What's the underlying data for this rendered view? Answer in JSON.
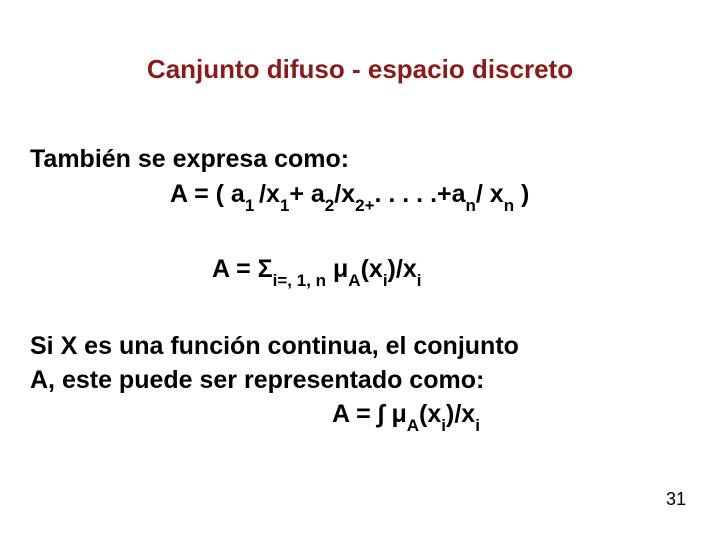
{
  "title": "Canjunto difuso - espacio discreto",
  "title_color": "#8b1a1a",
  "body_color": "#000000",
  "background_color": "#ffffff",
  "line_intro": "También se expresa como:",
  "formula1": {
    "A": "A",
    "eq": " = ( ",
    "a": "a",
    "s1": "1 ",
    "slash1": "/x",
    "s1b": "1",
    "plus1": "+ a",
    "s2": "2",
    "slash2": "/x",
    "s2b": "2+",
    "dots": ". . . . .+a",
    "sn": "n",
    "slashn": "/ x",
    "snb": "n",
    "close": " )"
  },
  "formula2": {
    "A": "A",
    "eq": " = ",
    "sigma": "Σ",
    "sub_sigma": "i=, 1, n",
    "sp": "  ",
    "mu": "μ",
    "subA": "A",
    "open": "(x",
    "si": "i",
    "close": ")/x",
    "si2": "i"
  },
  "line_cont1": "Si X es una función continua, el conjunto",
  "line_cont2": "A, este puede ser representado como:",
  "formula3": {
    "A": "A",
    "eq": " = ",
    "integral": "∫",
    "sp": " ",
    "mu": "μ",
    "subA": "A",
    "open": "(x",
    "si": "i",
    "close": ")/x",
    "si2": "i"
  },
  "page_number": "31"
}
